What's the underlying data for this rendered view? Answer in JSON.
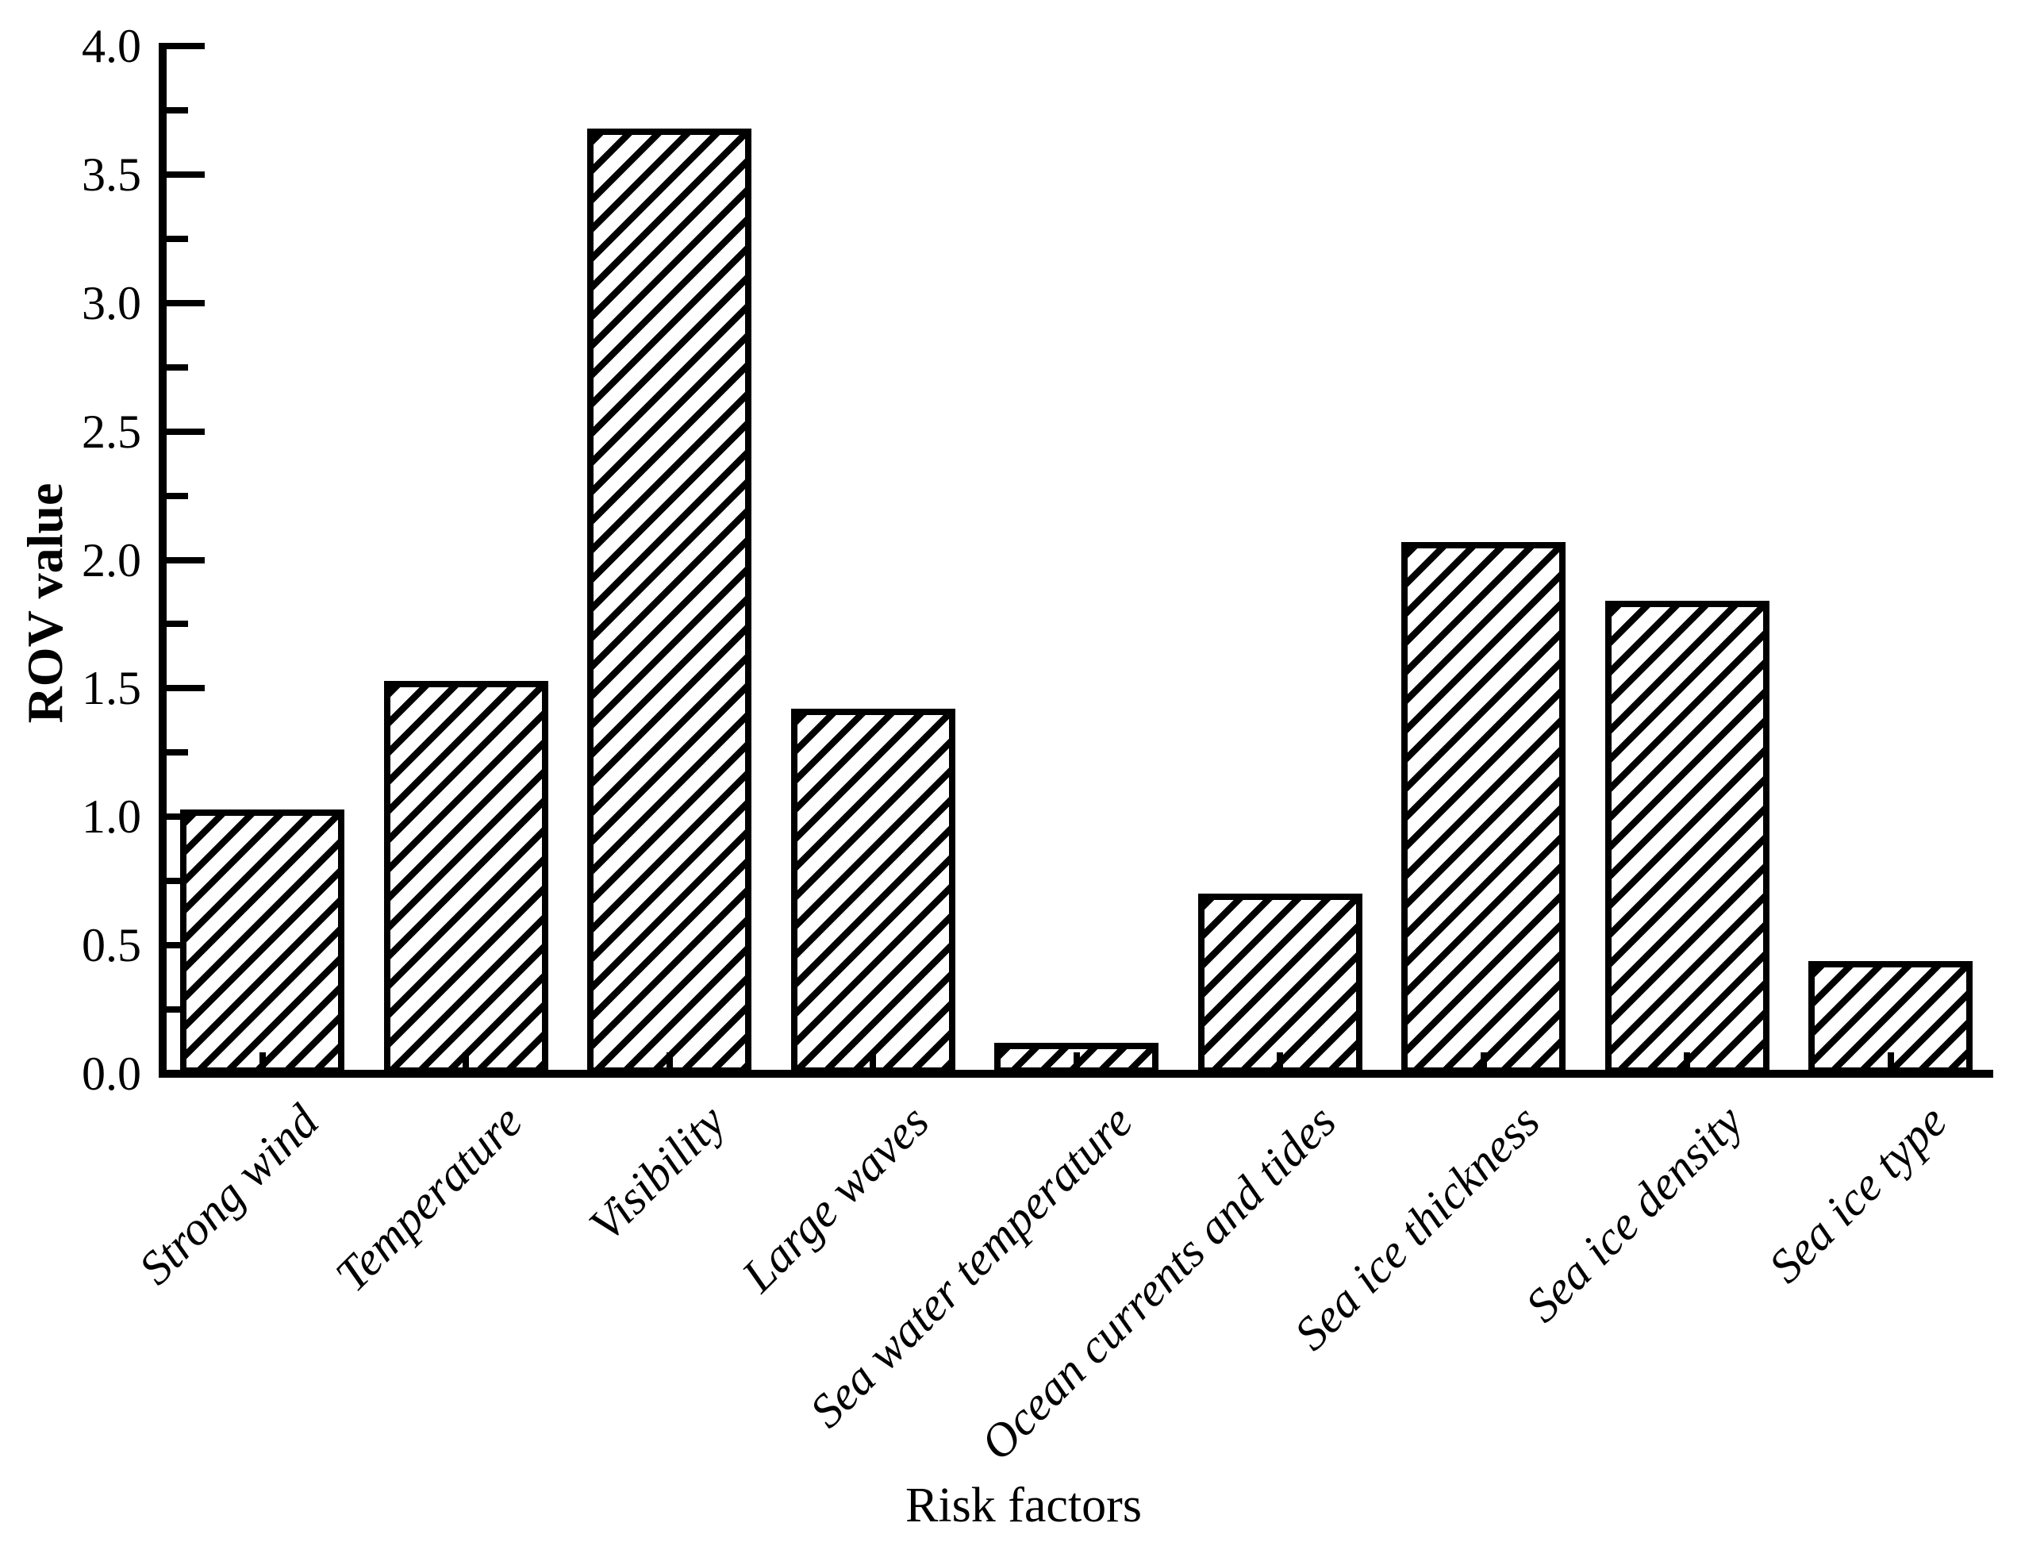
{
  "chart_data": {
    "type": "bar",
    "title": "",
    "xlabel": "Risk factors",
    "ylabel": "ROV value",
    "categories": [
      "Strong wind",
      "Temperature",
      "Visibility",
      "Large waves",
      "Sea water temperature",
      "Ocean currents and tides",
      "Sea ice thickness",
      "Sea ice density",
      "Sea ice type"
    ],
    "values": [
      1.03,
      1.53,
      3.68,
      1.42,
      0.12,
      0.7,
      2.07,
      1.84,
      0.44
    ],
    "ylim": [
      0.0,
      4.0
    ],
    "ytick_major_step": 0.5,
    "ytick_minor_step": 0.25,
    "ytick_labels": [
      "0.0",
      "0.5",
      "1.0",
      "1.5",
      "2.0",
      "2.5",
      "3.0",
      "3.5",
      "4.0"
    ],
    "grid": false,
    "legend": "none",
    "bar_style": "diagonal-hatch",
    "bar_edge_color": "#000000",
    "background_color": "#ffffff"
  }
}
